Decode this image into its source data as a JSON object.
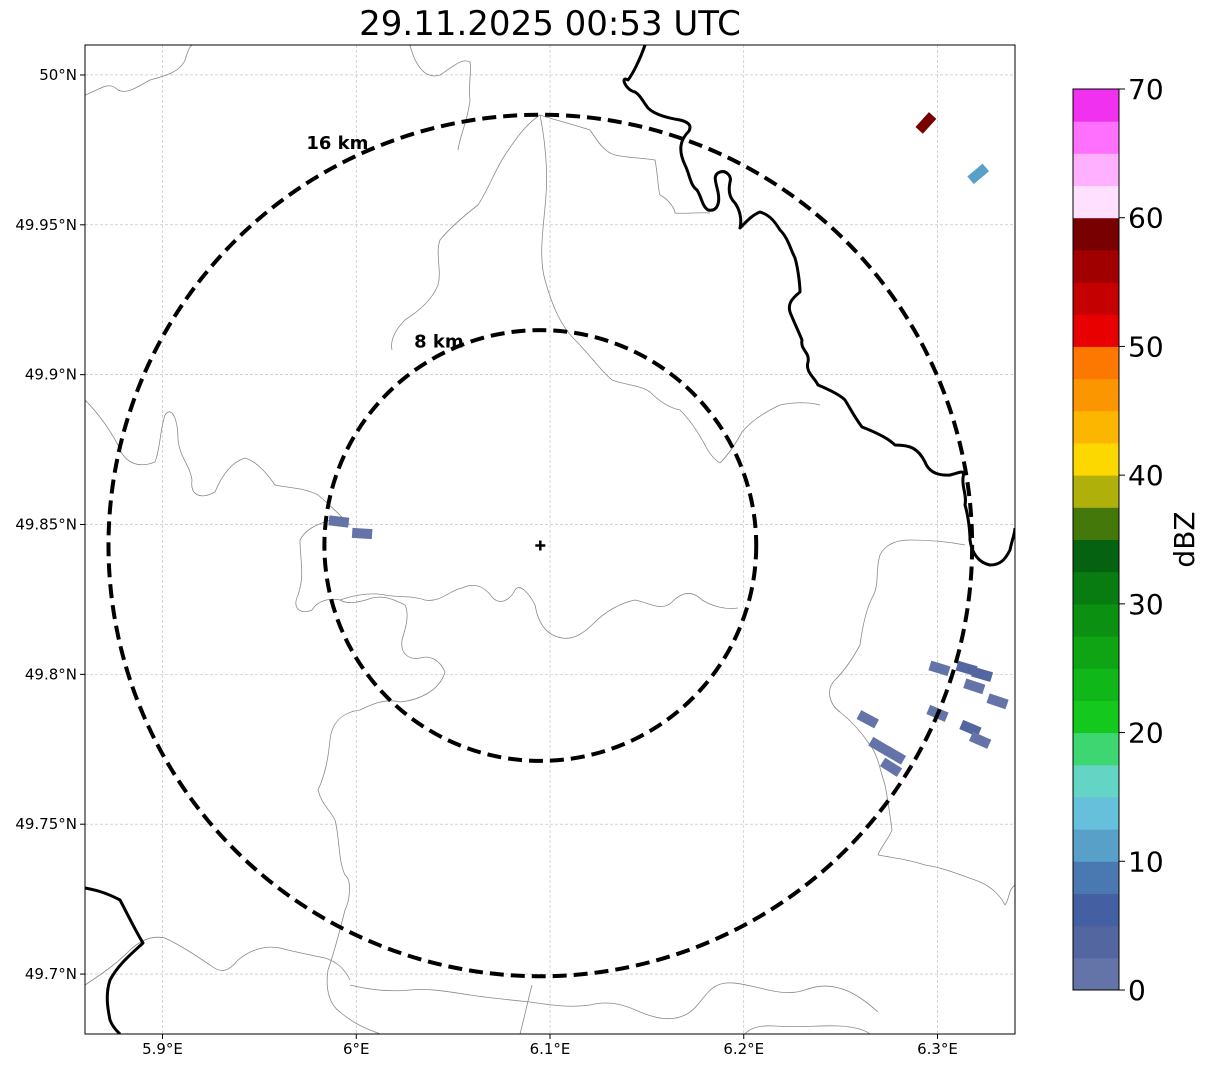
{
  "title": "29.11.2025 00:53 UTC",
  "map": {
    "lon_range": [
      5.86,
      6.34
    ],
    "lat_range": [
      49.68,
      50.01
    ],
    "radar_site": {
      "lon": 6.095,
      "lat": 49.843
    },
    "lon_ticks": [
      {
        "value": 5.9,
        "label": "5.9°E"
      },
      {
        "value": 6.0,
        "label": "6°E"
      },
      {
        "value": 6.1,
        "label": "6.1°E"
      },
      {
        "value": 6.2,
        "label": "6.2°E"
      },
      {
        "value": 6.3,
        "label": "6.3°E"
      }
    ],
    "lat_ticks": [
      {
        "value": 50.0,
        "label": "50°N"
      },
      {
        "value": 49.95,
        "label": "49.95°N"
      },
      {
        "value": 49.9,
        "label": "49.9°N"
      },
      {
        "value": 49.85,
        "label": "49.85°N"
      },
      {
        "value": 49.8,
        "label": "49.8°N"
      },
      {
        "value": 49.75,
        "label": "49.75°N"
      },
      {
        "value": 49.7,
        "label": "49.7°N"
      }
    ],
    "range_rings": [
      {
        "label": "16 km",
        "radius_km": 16
      },
      {
        "label": "8 km",
        "radius_km": 8
      }
    ],
    "gridlines": true
  },
  "colorbar": {
    "label": "dBZ",
    "min": 0,
    "max": 70,
    "step": 2.5,
    "ticks": [
      "0",
      "10",
      "20",
      "30",
      "40",
      "50",
      "60",
      "70"
    ],
    "colors": [
      "#6474a8",
      "#54669f",
      "#4460a2",
      "#4a78b0",
      "#58a0c8",
      "#66c0dc",
      "#64d4c4",
      "#3ed670",
      "#14c81e",
      "#0fb718",
      "#0ea414",
      "#0c9012",
      "#087c10",
      "#056210",
      "#44780a",
      "#b0b00a",
      "#fcd800",
      "#fcb600",
      "#fc9600",
      "#fc7800",
      "#e80000",
      "#c40000",
      "#a00000",
      "#780000",
      "#ffe0ff",
      "#ffb0ff",
      "#ff70ff",
      "#f032f0"
    ]
  },
  "echoes": [
    {
      "lon": 6.294,
      "lat": 49.984,
      "dbz": 58
    },
    {
      "lon": 6.321,
      "lat": 49.967,
      "dbz": 10
    },
    {
      "lon": 5.991,
      "lat": 49.851,
      "dbz": 2
    },
    {
      "lon": 6.003,
      "lat": 49.847,
      "dbz": 2
    },
    {
      "lon": 6.301,
      "lat": 49.802,
      "dbz": 2
    },
    {
      "lon": 6.315,
      "lat": 49.802,
      "dbz": 4
    },
    {
      "lon": 6.323,
      "lat": 49.8,
      "dbz": 4
    },
    {
      "lon": 6.319,
      "lat": 49.796,
      "dbz": 2
    },
    {
      "lon": 6.331,
      "lat": 49.791,
      "dbz": 2
    },
    {
      "lon": 6.264,
      "lat": 49.785,
      "dbz": 2
    },
    {
      "lon": 6.3,
      "lat": 49.787,
      "dbz": 2
    },
    {
      "lon": 6.317,
      "lat": 49.782,
      "dbz": 4
    },
    {
      "lon": 6.322,
      "lat": 49.778,
      "dbz": 2
    },
    {
      "lon": 6.27,
      "lat": 49.776,
      "dbz": 2
    },
    {
      "lon": 6.278,
      "lat": 49.773,
      "dbz": 2
    },
    {
      "lon": 6.276,
      "lat": 49.769,
      "dbz": 2
    }
  ]
}
